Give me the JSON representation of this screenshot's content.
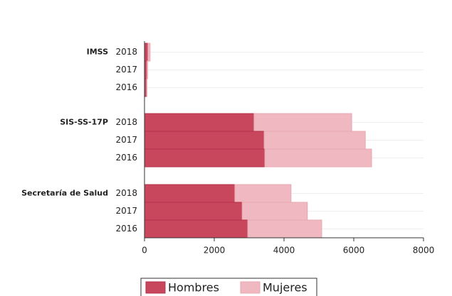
{
  "chart_data": {
    "type": "stacked-barh",
    "groups": [
      {
        "name": "IMSS",
        "categories": [
          "2018",
          "2017",
          "2016"
        ]
      },
      {
        "name": "SIS-SS-17P",
        "categories": [
          "2018",
          "2017",
          "2016"
        ]
      },
      {
        "name": "Secretaría de Salud",
        "categories": [
          "2018",
          "2017",
          "2016"
        ]
      }
    ],
    "series": [
      {
        "name": "Hombres",
        "color": "#c9475c",
        "values": [
          [
            100,
            70,
            60
          ],
          [
            3140,
            3430,
            3450
          ],
          [
            2590,
            2800,
            2960
          ]
        ]
      },
      {
        "name": "Mujeres",
        "color": "#f0b8c0",
        "values": [
          [
            60,
            20,
            10
          ],
          [
            2800,
            2900,
            3060
          ],
          [
            1610,
            1870,
            2120
          ]
        ]
      }
    ],
    "xlim": [
      0,
      8000
    ],
    "xticks": [
      0,
      2000,
      4000,
      6000,
      8000
    ]
  }
}
